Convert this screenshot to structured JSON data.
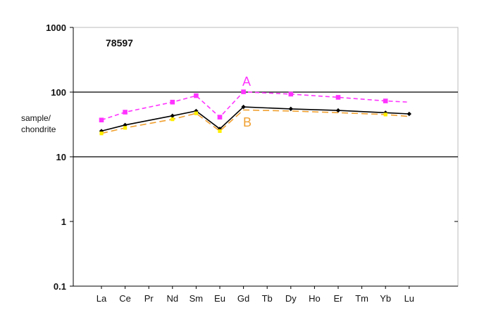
{
  "chart_data": {
    "type": "line",
    "title": "78597",
    "ylabel_lines": [
      "sample/",
      "chondrite"
    ],
    "xlabel": "",
    "yscale": "log",
    "ylim": [
      0.1,
      1000
    ],
    "yticks": [
      "0.1",
      "1",
      "10",
      "100",
      "1000"
    ],
    "categories": [
      "La",
      "Ce",
      "Pr",
      "Nd",
      "Sm",
      "Eu",
      "Gd",
      "Tb",
      "Dy",
      "Ho",
      "Er",
      "Tm",
      "Yb",
      "Lu"
    ],
    "grid": "horizontal lines at 10 and 100",
    "series": [
      {
        "name": "A",
        "color": "#ff33ff",
        "marker": "square",
        "line_style": "dashed",
        "values": [
          37,
          49,
          null,
          70,
          88,
          41,
          101,
          null,
          93,
          null,
          83,
          null,
          73,
          70
        ],
        "marker_mask": [
          true,
          true,
          false,
          true,
          true,
          true,
          true,
          false,
          true,
          false,
          true,
          false,
          true,
          false
        ]
      },
      {
        "name": "",
        "color": "#000000",
        "marker": "diamond",
        "line_style": "solid",
        "values": [
          25,
          31,
          null,
          43,
          51,
          27,
          59,
          null,
          55,
          null,
          52,
          null,
          48,
          46
        ],
        "marker_mask": [
          true,
          true,
          false,
          true,
          true,
          true,
          true,
          false,
          true,
          false,
          true,
          false,
          true,
          true
        ]
      },
      {
        "name": "B",
        "color": "#f0a030",
        "marker": "square",
        "marker_color": "#ffee00",
        "line_style": "dashed",
        "values": [
          23,
          28,
          null,
          38,
          47,
          25,
          53,
          null,
          51,
          null,
          48,
          null,
          45,
          42
        ],
        "marker_mask": [
          true,
          true,
          false,
          true,
          true,
          true,
          false,
          false,
          false,
          false,
          false,
          false,
          true,
          false
        ]
      }
    ]
  }
}
